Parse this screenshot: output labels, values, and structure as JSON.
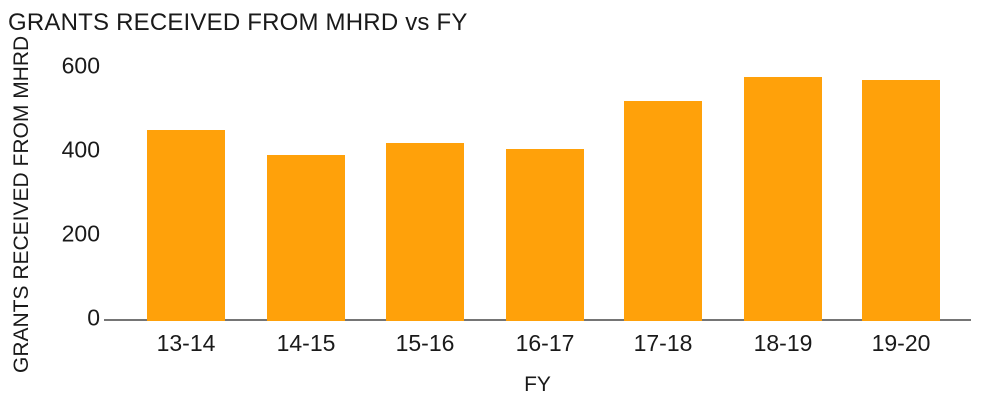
{
  "chart_data": {
    "type": "bar",
    "title": "GRANTS RECEIVED FROM MHRD vs FY",
    "xlabel": "FY",
    "ylabel": "GRANTS RECEIVED FROM MHRD",
    "categories": [
      "13-14",
      "14-15",
      "15-16",
      "16-17",
      "17-18",
      "18-19",
      "19-20"
    ],
    "values": [
      450,
      390,
      420,
      405,
      520,
      575,
      570
    ],
    "yticks": [
      0,
      200,
      400,
      600
    ],
    "ylim": [
      0,
      600
    ],
    "grid": "off",
    "legend": "none",
    "colors": {
      "bar": "#FFA10A",
      "axis_line": "#757575",
      "text": "#1A1A1A",
      "background": "#FFFFFF"
    }
  }
}
